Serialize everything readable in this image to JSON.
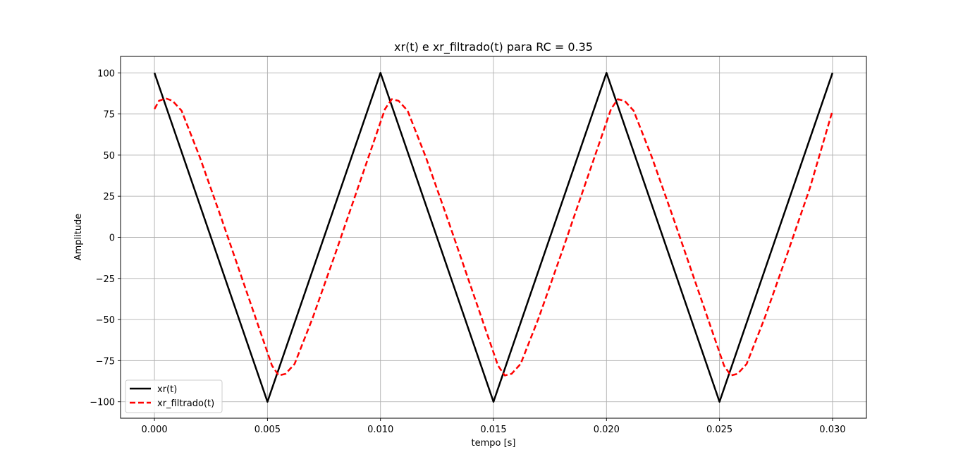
{
  "chart_data": {
    "type": "line",
    "title": "xr(t) e xr_filtrado(t) para RC = 0.35",
    "xlabel": "tempo [s]",
    "ylabel": "Amplitude",
    "xlim": [
      -0.0015,
      0.0315
    ],
    "ylim": [
      -110,
      110
    ],
    "grid": true,
    "legend_position": "lower-left",
    "x_ticks": [
      0.0,
      0.005,
      0.01,
      0.015,
      0.02,
      0.025,
      0.03
    ],
    "x_tick_labels": [
      "0.000",
      "0.005",
      "0.010",
      "0.015",
      "0.020",
      "0.025",
      "0.030"
    ],
    "y_ticks": [
      100,
      75,
      50,
      25,
      0,
      -25,
      -50,
      -75,
      -100
    ],
    "y_tick_labels": [
      "100",
      "75",
      "50",
      "25",
      "0",
      "−25",
      "−50",
      "−75",
      "−100"
    ],
    "series": [
      {
        "name": "xr(t)",
        "color": "#000000",
        "style": "solid",
        "x": [
          0.0,
          0.005,
          0.01,
          0.015,
          0.02,
          0.025,
          0.03
        ],
        "y": [
          100,
          -100,
          100,
          -100,
          100,
          -100,
          100
        ]
      },
      {
        "name": "xr_filtrado(t)",
        "color": "#ff0000",
        "style": "dashed",
        "x": [
          0.0,
          0.0002,
          0.0005,
          0.0008,
          0.0012,
          0.002,
          0.003,
          0.004,
          0.0048,
          0.0052,
          0.0055,
          0.0058,
          0.0062,
          0.007,
          0.008,
          0.009,
          0.0098,
          0.0102,
          0.0105,
          0.0108,
          0.0112,
          0.012,
          0.013,
          0.014,
          0.0148,
          0.0152,
          0.0155,
          0.0158,
          0.0162,
          0.017,
          0.018,
          0.019,
          0.0198,
          0.0202,
          0.0205,
          0.0208,
          0.0212,
          0.022,
          0.023,
          0.024,
          0.0248,
          0.0252,
          0.0255,
          0.0258,
          0.0262,
          0.027,
          0.028,
          0.029,
          0.03
        ],
        "y": [
          78,
          83,
          84.5,
          83,
          77,
          49,
          10,
          -30,
          -62,
          -78,
          -84,
          -83,
          -77,
          -49,
          -10,
          30,
          62,
          78,
          84,
          83,
          77,
          49,
          10,
          -30,
          -62,
          -78,
          -84,
          -83,
          -77,
          -49,
          -10,
          30,
          62,
          78,
          84,
          83,
          77,
          49,
          10,
          -30,
          -62,
          -78,
          -84,
          -83,
          -77,
          -49,
          -10,
          30,
          77
        ]
      }
    ]
  }
}
